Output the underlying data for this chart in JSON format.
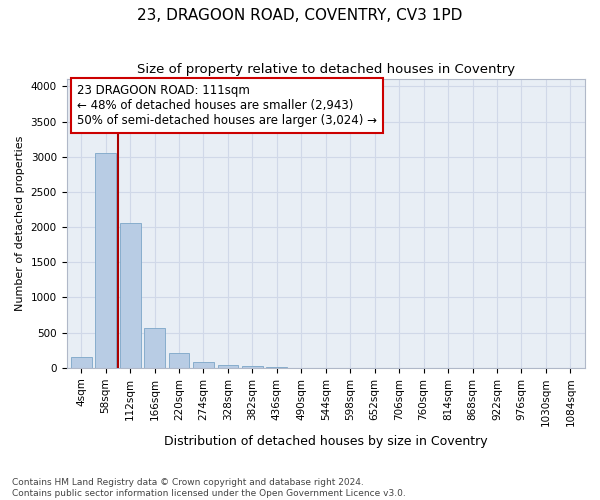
{
  "title1": "23, DRAGOON ROAD, COVENTRY, CV3 1PD",
  "title2": "Size of property relative to detached houses in Coventry",
  "xlabel": "Distribution of detached houses by size in Coventry",
  "ylabel": "Number of detached properties",
  "categories": [
    "4sqm",
    "58sqm",
    "112sqm",
    "166sqm",
    "220sqm",
    "274sqm",
    "328sqm",
    "382sqm",
    "436sqm",
    "490sqm",
    "544sqm",
    "598sqm",
    "652sqm",
    "706sqm",
    "760sqm",
    "814sqm",
    "868sqm",
    "922sqm",
    "976sqm",
    "1030sqm",
    "1084sqm"
  ],
  "values": [
    148,
    3055,
    2060,
    562,
    212,
    82,
    47,
    32,
    5,
    0,
    0,
    0,
    0,
    0,
    0,
    0,
    0,
    0,
    0,
    0,
    0
  ],
  "bar_color": "#b8cce4",
  "bar_edge_color": "#7ca6c8",
  "vline_x": 1.5,
  "vline_color": "#aa0000",
  "annotation_line1": "23 DRAGOON ROAD: 111sqm",
  "annotation_line2": "← 48% of detached houses are smaller (2,943)",
  "annotation_line3": "50% of semi-detached houses are larger (3,024) →",
  "annotation_box_color": "#ffffff",
  "annotation_box_edge": "#cc0000",
  "ylim": [
    0,
    4100
  ],
  "yticks": [
    0,
    500,
    1000,
    1500,
    2000,
    2500,
    3000,
    3500,
    4000
  ],
  "background_color": "#e8eef5",
  "grid_color": "#d0d8e8",
  "footer_line1": "Contains HM Land Registry data © Crown copyright and database right 2024.",
  "footer_line2": "Contains public sector information licensed under the Open Government Licence v3.0.",
  "title1_fontsize": 11,
  "title2_fontsize": 9.5,
  "xlabel_fontsize": 9,
  "ylabel_fontsize": 8,
  "tick_fontsize": 7.5,
  "annotation_fontsize": 8.5,
  "footer_fontsize": 6.5
}
